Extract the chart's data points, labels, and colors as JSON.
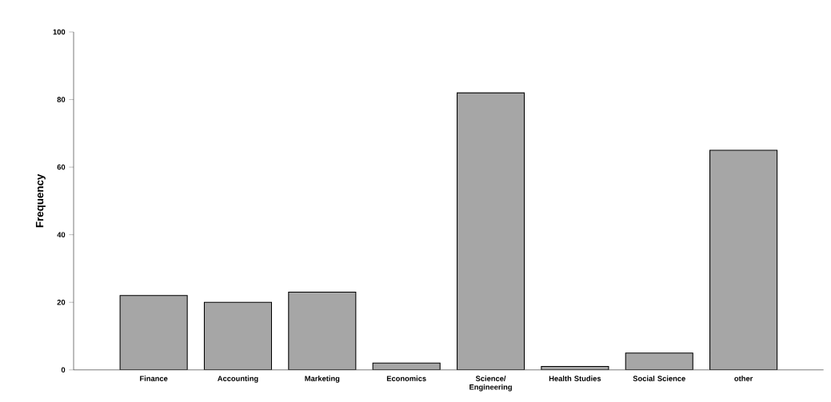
{
  "chart_data": {
    "type": "bar",
    "ylabel": "Frequency",
    "categories": [
      "Finance",
      "Accounting",
      "Marketing",
      "Economics",
      "Science/ Engineering",
      "Health Studies",
      "Social Science",
      "other"
    ],
    "values": [
      22,
      20,
      23,
      2,
      82,
      1,
      5,
      65
    ],
    "color": "#a6a6a6",
    "ylim": [
      0,
      100
    ],
    "yticks": [
      0,
      20,
      40,
      60,
      80,
      100
    ],
    "grid": false
  }
}
